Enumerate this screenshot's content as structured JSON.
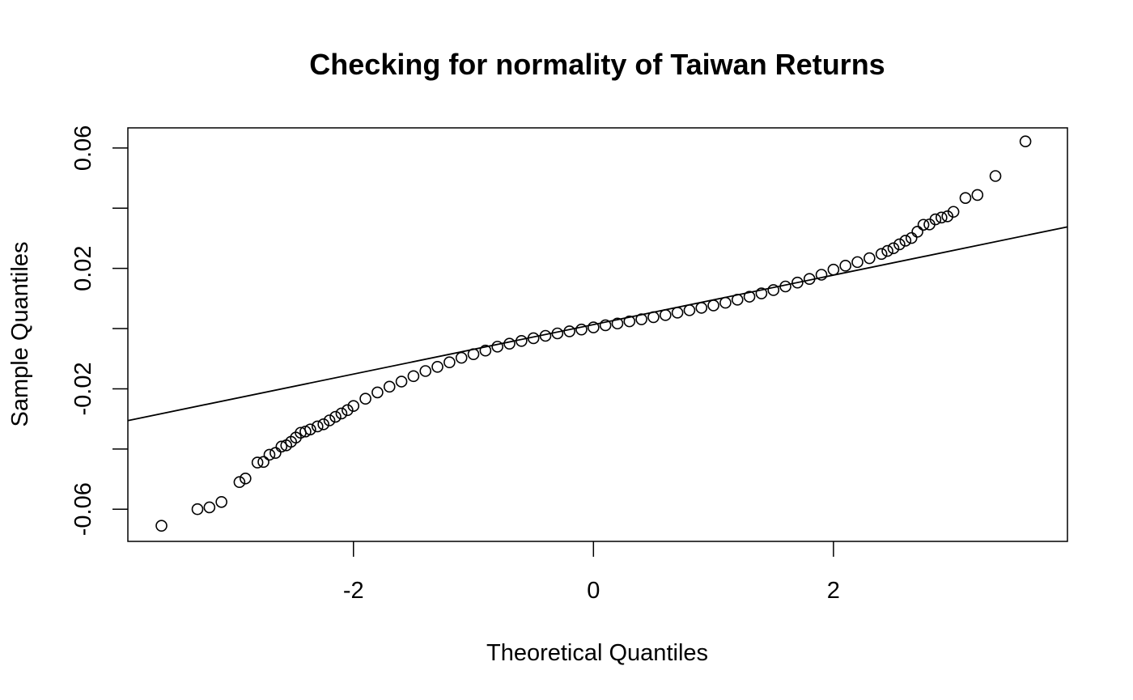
{
  "chart_data": {
    "type": "scatter",
    "title": "Checking for normality of Taiwan Returns",
    "xlabel": "Theoretical Quantiles",
    "ylabel": "Sample Quantiles",
    "xlim": [
      -3.88,
      3.95
    ],
    "ylim": [
      -0.0707,
      0.0667
    ],
    "grid": false,
    "legend": "none",
    "x_ticks": [
      {
        "value": -2,
        "label": "-2"
      },
      {
        "value": 0,
        "label": "0"
      },
      {
        "value": 2,
        "label": "2"
      }
    ],
    "y_ticks": [
      {
        "value": -0.06,
        "label": "-0.06"
      },
      {
        "value": -0.04,
        "label": ""
      },
      {
        "value": -0.02,
        "label": "-0.02"
      },
      {
        "value": 0.0,
        "label": ""
      },
      {
        "value": 0.02,
        "label": "0.02"
      },
      {
        "value": 0.04,
        "label": ""
      },
      {
        "value": 0.06,
        "label": "0.06"
      }
    ],
    "reference_line": {
      "intercept": 0.00133,
      "slope": 0.00822
    },
    "marker": {
      "shape": "open-circle",
      "color": "#000000"
    },
    "series": [
      {
        "points": [
          [
            -3.6,
            -0.0655
          ],
          [
            -3.3,
            -0.06
          ],
          [
            -3.2,
            -0.0594
          ],
          [
            -3.1,
            -0.0576
          ],
          [
            -2.95,
            -0.051
          ],
          [
            -2.9,
            -0.0498
          ],
          [
            -2.8,
            -0.0445
          ],
          [
            -2.75,
            -0.0443
          ],
          [
            -2.7,
            -0.0419
          ],
          [
            -2.65,
            -0.0413
          ],
          [
            -2.6,
            -0.0392
          ],
          [
            -2.56,
            -0.0388
          ],
          [
            -2.52,
            -0.0376
          ],
          [
            -2.48,
            -0.0362
          ],
          [
            -2.44,
            -0.0346
          ],
          [
            -2.4,
            -0.0342
          ],
          [
            -2.36,
            -0.0335
          ],
          [
            -2.3,
            -0.0325
          ],
          [
            -2.25,
            -0.0318
          ],
          [
            -2.2,
            -0.0305
          ],
          [
            -2.15,
            -0.0293
          ],
          [
            -2.1,
            -0.0282
          ],
          [
            -2.05,
            -0.0271
          ],
          [
            -2.0,
            -0.0257
          ],
          [
            -1.9,
            -0.0233
          ],
          [
            -1.8,
            -0.0212
          ],
          [
            -1.7,
            -0.0193
          ],
          [
            -1.6,
            -0.0176
          ],
          [
            -1.5,
            -0.0158
          ],
          [
            -1.4,
            -0.0141
          ],
          [
            -1.3,
            -0.0127
          ],
          [
            -1.2,
            -0.0112
          ],
          [
            -1.1,
            -0.0097
          ],
          [
            -1.0,
            -0.0085
          ],
          [
            -0.9,
            -0.0073
          ],
          [
            -0.8,
            -0.006
          ],
          [
            -0.7,
            -0.005
          ],
          [
            -0.6,
            -0.0041
          ],
          [
            -0.5,
            -0.0032
          ],
          [
            -0.4,
            -0.0024
          ],
          [
            -0.3,
            -0.0016
          ],
          [
            -0.2,
            -0.0009
          ],
          [
            -0.1,
            -0.0003
          ],
          [
            0.0,
            0.0004
          ],
          [
            0.1,
            0.0011
          ],
          [
            0.2,
            0.0017
          ],
          [
            0.3,
            0.0024
          ],
          [
            0.4,
            0.0031
          ],
          [
            0.5,
            0.0038
          ],
          [
            0.6,
            0.0045
          ],
          [
            0.7,
            0.0053
          ],
          [
            0.8,
            0.0061
          ],
          [
            0.9,
            0.0069
          ],
          [
            1.0,
            0.0077
          ],
          [
            1.1,
            0.0086
          ],
          [
            1.2,
            0.0096
          ],
          [
            1.3,
            0.0106
          ],
          [
            1.4,
            0.0117
          ],
          [
            1.5,
            0.0128
          ],
          [
            1.6,
            0.014
          ],
          [
            1.7,
            0.0153
          ],
          [
            1.8,
            0.0165
          ],
          [
            1.9,
            0.0179
          ],
          [
            2.0,
            0.0196
          ],
          [
            2.1,
            0.0209
          ],
          [
            2.2,
            0.0221
          ],
          [
            2.3,
            0.0234
          ],
          [
            2.4,
            0.0248
          ],
          [
            2.45,
            0.0258
          ],
          [
            2.5,
            0.0267
          ],
          [
            2.55,
            0.028
          ],
          [
            2.6,
            0.0292
          ],
          [
            2.65,
            0.0301
          ],
          [
            2.7,
            0.0322
          ],
          [
            2.75,
            0.0345
          ],
          [
            2.8,
            0.0346
          ],
          [
            2.85,
            0.0363
          ],
          [
            2.9,
            0.0369
          ],
          [
            2.95,
            0.0373
          ],
          [
            3.0,
            0.0388
          ],
          [
            3.1,
            0.0434
          ],
          [
            3.2,
            0.0444
          ],
          [
            3.35,
            0.0507
          ],
          [
            3.6,
            0.0622
          ]
        ]
      }
    ]
  }
}
